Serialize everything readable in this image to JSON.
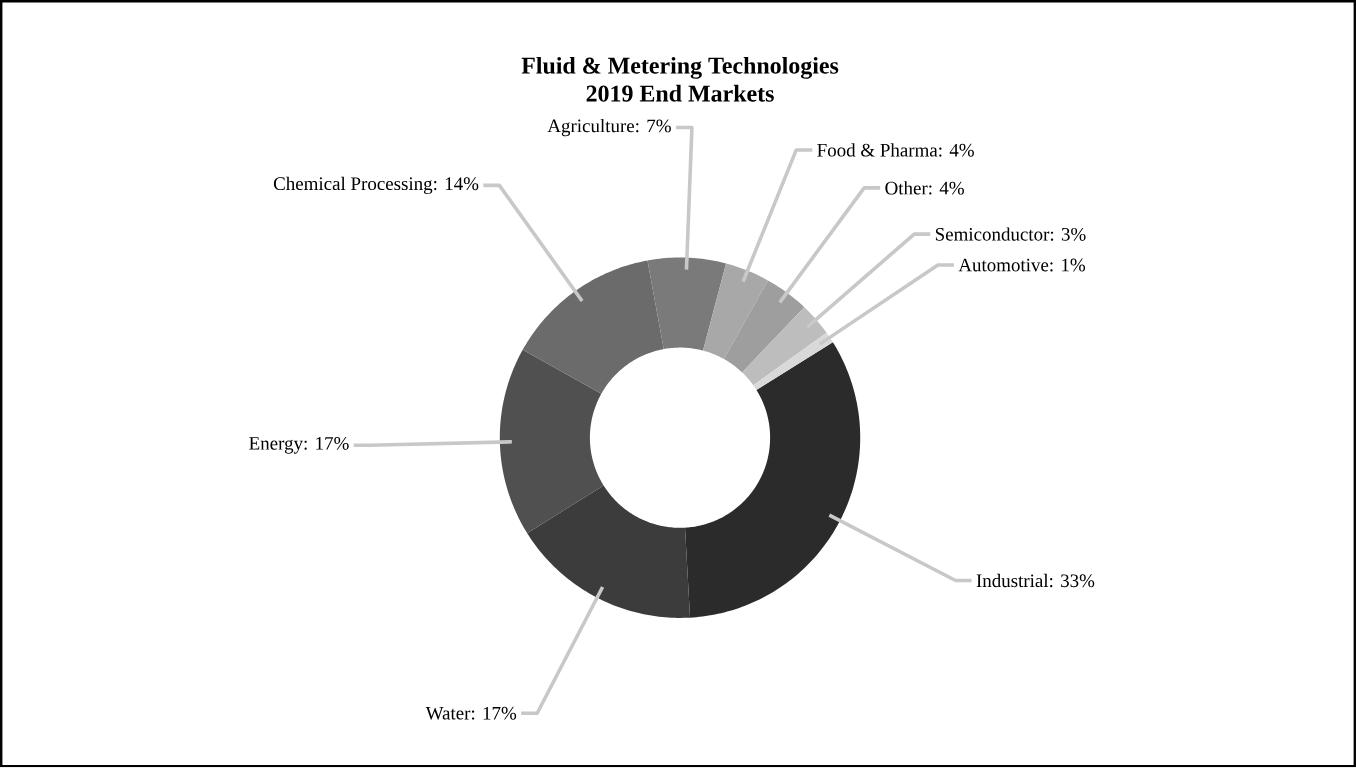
{
  "chart_data": {
    "type": "donut",
    "title": "Fluid & Metering Technologies",
    "subtitle": "2019 End Markets",
    "categories": [
      "Industrial: 33%",
      "Water: 17%",
      "Energy: 17%",
      "Chemical Processing: 14%",
      "Agriculture: 7%",
      "Food & Pharma: 4%",
      "Other: 4%",
      "Semiconductor: 3%",
      "Automotive: 1%"
    ],
    "values": [
      33,
      17,
      17,
      14,
      7,
      4,
      4,
      3,
      1
    ],
    "colors": [
      "#2b2b2b",
      "#3c3c3c",
      "#505050",
      "#6b6b6b",
      "#7a7a7a",
      "#a8a8a8",
      "#9e9e9e",
      "#bdbdbd",
      "#d9d9d9"
    ]
  }
}
